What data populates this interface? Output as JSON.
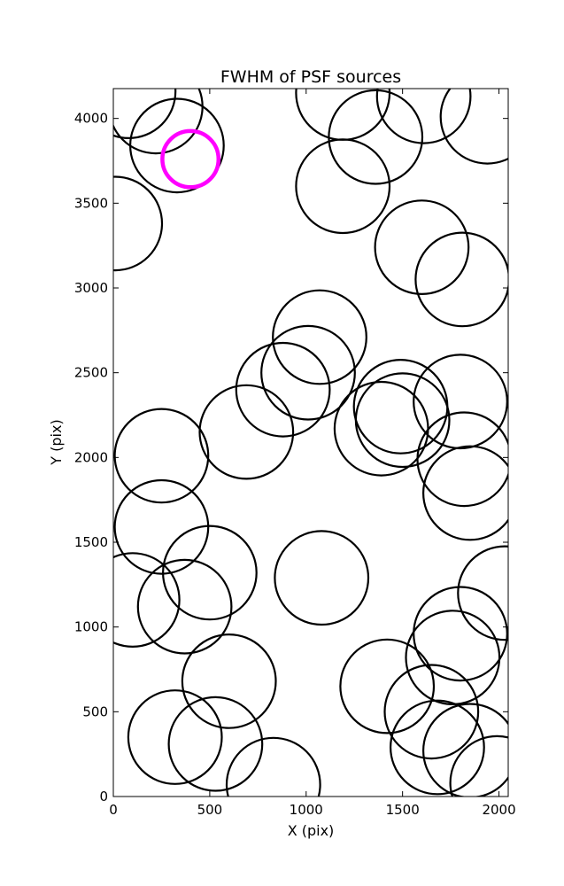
{
  "chart_data": {
    "type": "scatter",
    "title": "FWHM of PSF sources",
    "xlabel": "X (pix)",
    "ylabel": "Y (pix)",
    "xlim": [
      0,
      2048
    ],
    "ylim": [
      0,
      4176
    ],
    "grid": false,
    "x_ticks": [
      0,
      500,
      1000,
      1500,
      2000
    ],
    "y_ticks": [
      0,
      500,
      1000,
      1500,
      2000,
      2500,
      3000,
      3500,
      4000
    ],
    "x_tick_labels": [
      "0",
      "500",
      "1000",
      "1500",
      "2000"
    ],
    "y_tick_labels": [
      "0",
      "500",
      "1000",
      "1500",
      "2000",
      "2500",
      "3000",
      "3500",
      "4000"
    ],
    "series": [
      {
        "color": "#000000",
        "marker": "open-circle",
        "points": [
          {
            "x": 80,
            "y": 4160,
            "r": 250
          },
          {
            "x": 220,
            "y": 4070,
            "r": 250
          },
          {
            "x": 330,
            "y": 3840,
            "r": 250
          },
          {
            "x": 10,
            "y": 3380,
            "r": 250
          },
          {
            "x": 1190,
            "y": 4150,
            "r": 250
          },
          {
            "x": 1610,
            "y": 4130,
            "r": 250
          },
          {
            "x": 1360,
            "y": 3890,
            "r": 250
          },
          {
            "x": 1940,
            "y": 4010,
            "r": 250
          },
          {
            "x": 1190,
            "y": 3600,
            "r": 250
          },
          {
            "x": 1600,
            "y": 3240,
            "r": 250
          },
          {
            "x": 1810,
            "y": 3050,
            "r": 250
          },
          {
            "x": 1070,
            "y": 2710,
            "r": 250
          },
          {
            "x": 1010,
            "y": 2500,
            "r": 250
          },
          {
            "x": 880,
            "y": 2400,
            "r": 250
          },
          {
            "x": 690,
            "y": 2150,
            "r": 250
          },
          {
            "x": 1490,
            "y": 2300,
            "r": 250
          },
          {
            "x": 1500,
            "y": 2220,
            "r": 250
          },
          {
            "x": 1390,
            "y": 2170,
            "r": 250
          },
          {
            "x": 1800,
            "y": 2330,
            "r": 250
          },
          {
            "x": 1820,
            "y": 1990,
            "r": 250
          },
          {
            "x": 1850,
            "y": 1790,
            "r": 250
          },
          {
            "x": 250,
            "y": 2010,
            "r": 250
          },
          {
            "x": 250,
            "y": 1590,
            "r": 250
          },
          {
            "x": 100,
            "y": 1160,
            "r": 250
          },
          {
            "x": 500,
            "y": 1320,
            "r": 250
          },
          {
            "x": 370,
            "y": 1120,
            "r": 250
          },
          {
            "x": 1080,
            "y": 1290,
            "r": 250
          },
          {
            "x": 600,
            "y": 680,
            "r": 250
          },
          {
            "x": 320,
            "y": 350,
            "r": 250
          },
          {
            "x": 530,
            "y": 310,
            "r": 250
          },
          {
            "x": 830,
            "y": 70,
            "r": 250
          },
          {
            "x": 1420,
            "y": 650,
            "r": 250
          },
          {
            "x": 2030,
            "y": 1200,
            "r": 250
          },
          {
            "x": 1800,
            "y": 960,
            "r": 250
          },
          {
            "x": 1760,
            "y": 820,
            "r": 250
          },
          {
            "x": 1650,
            "y": 500,
            "r": 250
          },
          {
            "x": 1680,
            "y": 290,
            "r": 250
          },
          {
            "x": 1850,
            "y": 270,
            "r": 250
          },
          {
            "x": 1990,
            "y": 80,
            "r": 250
          }
        ]
      },
      {
        "color": "#ff00ff",
        "marker": "open-circle",
        "points": [
          {
            "x": 400,
            "y": 3760,
            "r": 150
          }
        ]
      }
    ]
  }
}
